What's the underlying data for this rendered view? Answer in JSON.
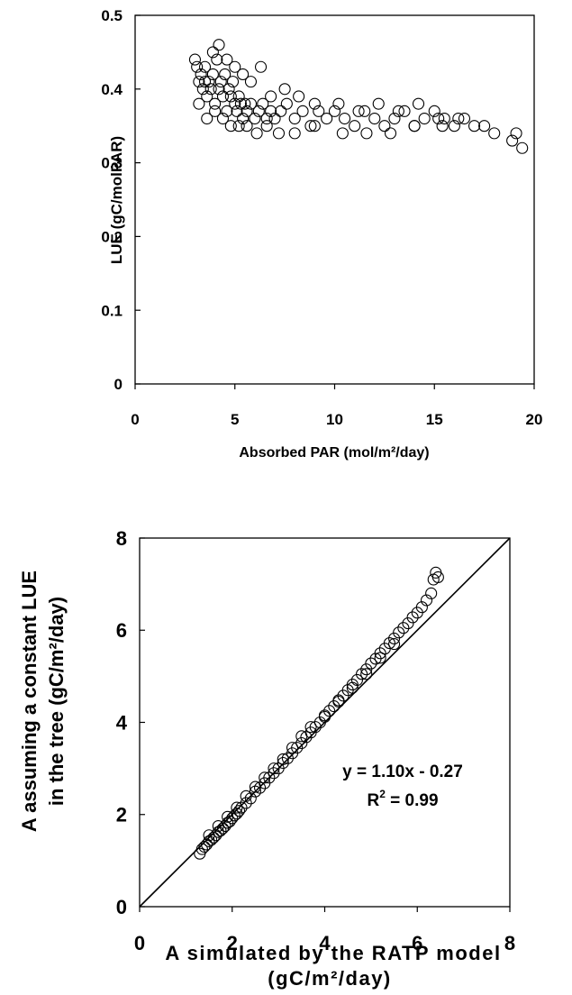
{
  "chart_data": [
    {
      "type": "scatter",
      "xlabel": "Absorbed PAR (mol/m²/day)",
      "ylabel": "LUE (gC/molPAR)",
      "xlim": [
        0,
        20
      ],
      "ylim": [
        0,
        0.5
      ],
      "xticks": [
        "0",
        "5",
        "10",
        "15",
        "20"
      ],
      "yticks": [
        "0",
        "0.1",
        "0.2",
        "0.3",
        "0.4",
        "0.5"
      ],
      "grid": false,
      "series": [
        {
          "marker": "open-circle",
          "x": [
            3.0,
            3.1,
            3.2,
            3.3,
            3.4,
            3.5,
            3.6,
            3.7,
            3.8,
            3.9,
            4.0,
            4.1,
            4.2,
            4.3,
            4.4,
            4.5,
            4.6,
            4.7,
            4.8,
            4.9,
            5.0,
            5.1,
            5.2,
            5.3,
            5.4,
            5.5,
            5.6,
            5.8,
            6.0,
            6.2,
            6.4,
            6.6,
            6.8,
            7.0,
            7.3,
            7.6,
            8.0,
            8.4,
            8.8,
            9.2,
            9.6,
            10.0,
            10.5,
            11.0,
            11.5,
            12.0,
            12.5,
            13.0,
            13.5,
            14.0,
            14.5,
            15.0,
            15.5,
            16.0,
            16.5,
            17.0,
            17.5,
            18.0,
            18.9,
            19.1,
            19.4,
            3.2,
            3.5,
            3.9,
            4.2,
            4.6,
            5.0,
            5.4,
            5.8,
            6.3,
            6.8,
            7.5,
            8.2,
            9.0,
            10.2,
            11.2,
            12.2,
            13.2,
            14.2,
            15.2,
            16.2,
            3.6,
            4.0,
            4.4,
            4.8,
            5.2,
            5.6,
            6.1,
            6.6,
            7.2,
            8.0,
            9.0,
            10.4,
            11.6,
            12.8,
            14.0,
            15.4
          ],
          "y": [
            0.44,
            0.43,
            0.41,
            0.42,
            0.4,
            0.43,
            0.39,
            0.41,
            0.4,
            0.42,
            0.38,
            0.44,
            0.4,
            0.41,
            0.39,
            0.42,
            0.37,
            0.4,
            0.39,
            0.41,
            0.38,
            0.37,
            0.39,
            0.38,
            0.36,
            0.38,
            0.37,
            0.38,
            0.36,
            0.37,
            0.38,
            0.36,
            0.37,
            0.36,
            0.37,
            0.38,
            0.36,
            0.37,
            0.35,
            0.37,
            0.36,
            0.37,
            0.36,
            0.35,
            0.37,
            0.36,
            0.35,
            0.36,
            0.37,
            0.35,
            0.36,
            0.37,
            0.36,
            0.35,
            0.36,
            0.35,
            0.35,
            0.34,
            0.33,
            0.34,
            0.32,
            0.38,
            0.41,
            0.45,
            0.46,
            0.44,
            0.43,
            0.42,
            0.41,
            0.43,
            0.39,
            0.4,
            0.39,
            0.38,
            0.38,
            0.37,
            0.38,
            0.37,
            0.38,
            0.36,
            0.36,
            0.36,
            0.37,
            0.36,
            0.35,
            0.35,
            0.35,
            0.34,
            0.35,
            0.34,
            0.34,
            0.35,
            0.34,
            0.34,
            0.34,
            0.35,
            0.35
          ]
        }
      ]
    },
    {
      "type": "scatter",
      "xlabel": "A simulated by the RATP model (gC/m²/day)",
      "xlabel_lines": [
        "A simulated by the RATP model",
        "(gC/m²/day)"
      ],
      "ylabel": "A assuming a constant LUE in the tree (gC/m²/day)",
      "ylabel_lines": [
        "A assuming a constant LUE",
        "in the tree (gC/m²/day)"
      ],
      "xlim": [
        0,
        8
      ],
      "ylim": [
        0,
        8
      ],
      "xticks": [
        "0",
        "2",
        "4",
        "6",
        "8"
      ],
      "yticks": [
        "0",
        "2",
        "4",
        "6",
        "8"
      ],
      "grid": false,
      "reference_line": "1:1",
      "annotation": {
        "equation": "y = 1.10x - 0.27",
        "r2_base": "R",
        "r2_sup": "2",
        "r2_rest": " = 0.99"
      },
      "series": [
        {
          "marker": "open-circle",
          "x": [
            1.3,
            1.35,
            1.4,
            1.45,
            1.5,
            1.55,
            1.6,
            1.65,
            1.7,
            1.75,
            1.8,
            1.85,
            1.9,
            1.95,
            2.0,
            2.05,
            2.1,
            2.15,
            2.2,
            2.3,
            2.4,
            2.5,
            2.6,
            2.7,
            2.8,
            2.9,
            3.0,
            3.1,
            3.2,
            3.3,
            3.4,
            3.5,
            3.6,
            3.7,
            3.8,
            3.9,
            4.0,
            4.1,
            4.2,
            4.3,
            4.4,
            4.5,
            4.6,
            4.7,
            4.8,
            4.9,
            5.0,
            5.1,
            5.2,
            5.3,
            5.4,
            5.5,
            5.6,
            5.7,
            5.8,
            5.9,
            6.0,
            6.1,
            6.2,
            6.3,
            6.35,
            6.4,
            6.45,
            1.5,
            1.7,
            1.9,
            2.1,
            2.3,
            2.5,
            2.7,
            2.9,
            3.1,
            3.3,
            3.5,
            3.7,
            4.0,
            4.3,
            4.6,
            4.9,
            5.2,
            5.5
          ],
          "y": [
            1.15,
            1.25,
            1.3,
            1.35,
            1.42,
            1.45,
            1.5,
            1.55,
            1.62,
            1.65,
            1.7,
            1.75,
            1.82,
            1.85,
            1.92,
            1.98,
            2.02,
            2.08,
            2.15,
            2.25,
            2.35,
            2.5,
            2.58,
            2.68,
            2.8,
            2.9,
            3.0,
            3.12,
            3.22,
            3.33,
            3.45,
            3.55,
            3.68,
            3.78,
            3.9,
            4.0,
            4.12,
            4.25,
            4.35,
            4.48,
            4.58,
            4.7,
            4.82,
            4.92,
            5.05,
            5.15,
            5.28,
            5.38,
            5.5,
            5.6,
            5.72,
            5.82,
            5.95,
            6.05,
            6.15,
            6.28,
            6.38,
            6.5,
            6.65,
            6.8,
            7.1,
            7.25,
            7.15,
            1.55,
            1.75,
            1.95,
            2.15,
            2.4,
            2.6,
            2.8,
            3.0,
            3.2,
            3.45,
            3.7,
            3.9,
            4.15,
            4.45,
            4.75,
            5.05,
            5.4,
            5.7
          ]
        }
      ]
    }
  ]
}
